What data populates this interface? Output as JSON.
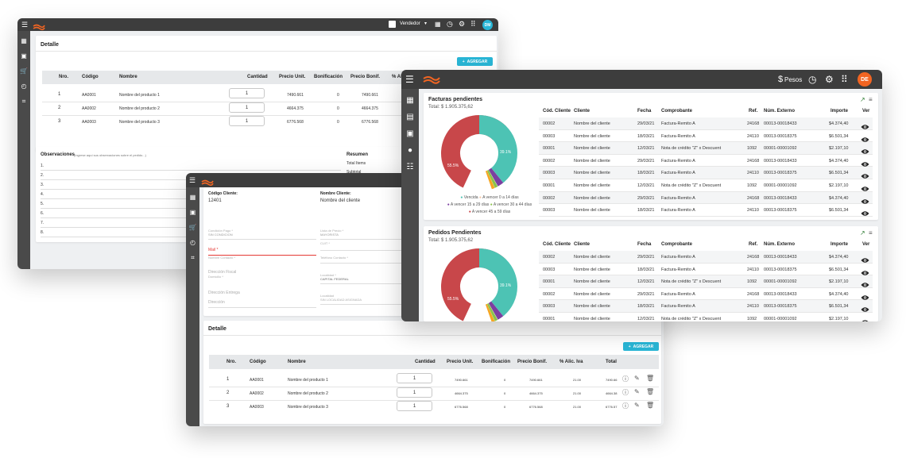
{
  "colors": {
    "accent": "#29b6d6",
    "topbar": "#3d3d3d",
    "teal": "#4dc3b4",
    "red": "#c8474a",
    "purple": "#7b3fa0",
    "green": "#8bc34a",
    "orange": "#f5a623",
    "avatar_back": "#29b6d6",
    "avatar_front": "#f26522"
  },
  "back": {
    "user_menu": "Vendedor",
    "avatar": "DM",
    "detalle": {
      "title": "Detalle",
      "add_label": "AGREGAR",
      "headers": [
        "Nro.",
        "Código",
        "Nombre",
        "Cantidad",
        "Precio Unit.",
        "Bonificación",
        "Precio Bonif.",
        "% Al"
      ],
      "rows": [
        {
          "nro": "1",
          "codigo": "AA0001",
          "nombre": "Nombre del producto 1",
          "cantidad": "1",
          "precio": "7490.661",
          "bonif": "0",
          "precio_bonif": "7490.661"
        },
        {
          "nro": "2",
          "codigo": "AA0002",
          "nombre": "Nombre del producto 2",
          "cantidad": "1",
          "precio": "4664.375",
          "bonif": "0",
          "precio_bonif": "4664.375"
        },
        {
          "nro": "3",
          "codigo": "AA0003",
          "nombre": "Nombre del producto 3",
          "cantidad": "1",
          "precio": "6776.568",
          "bonif": "0",
          "precio_bonif": "6776.568"
        }
      ]
    },
    "obs": {
      "title": "Observaciones",
      "hint": "(Ingrese aquí sus observaciones sobre el pedido...)",
      "lines": [
        "1.",
        "2.",
        "3.",
        "4.",
        "5.",
        "6.",
        "7.",
        "8."
      ],
      "resumen_title": "Resumen",
      "resumen_items": [
        "Total Items",
        "Subtotal"
      ]
    }
  },
  "middle": {
    "cliente": {
      "codigo_label": "Código Cliente:",
      "codigo_value": "12401",
      "nombre_label": "Nombre Cliente:",
      "nombre_value": "Nombre del cliente",
      "fields": [
        {
          "label": "Condición Pago *",
          "value": "SIN CONDICION"
        },
        {
          "label": "Lista de Precio *",
          "value": "MAYORISTA"
        },
        {
          "label": "",
          "value": "CUIT *"
        },
        {
          "label": "",
          "value": "Mail *"
        },
        {
          "label": "",
          "value": "Nombre Contacto *"
        },
        {
          "label": "",
          "value": "Teléfono Contacto *"
        },
        {
          "label": "",
          "value": "Dirección Fiscal"
        },
        {
          "label": "",
          "value": "Domicilio *"
        },
        {
          "label": "Localidad *",
          "value": "CAPITAL FEDERAL"
        },
        {
          "label": "",
          "value": "Dirección Entrega"
        },
        {
          "label": "",
          "value": "Dirección"
        },
        {
          "label": "Localidad",
          "value": "SIN LOCALIDAD ASIGNADA"
        }
      ]
    },
    "detalle": {
      "title": "Detalle",
      "add_label": "AGREGAR",
      "headers": [
        "Nro.",
        "Código",
        "Nombre",
        "Cantidad",
        "Precio Unit.",
        "Bonificación",
        "Precio Bonif.",
        "% Alic. Iva",
        "Total"
      ],
      "rows": [
        {
          "nro": "1",
          "codigo": "AA0001",
          "nombre": "Nombre del producto 1",
          "cantidad": "1",
          "precio": "7490.661",
          "bonif": "0",
          "precio_bonif": "7490.661",
          "iva": "21.00",
          "total": "7490.66"
        },
        {
          "nro": "2",
          "codigo": "AA0002",
          "nombre": "Nombre del producto 2",
          "cantidad": "1",
          "precio": "4664.375",
          "bonif": "0",
          "precio_bonif": "4664.375",
          "iva": "21.00",
          "total": "4664.38"
        },
        {
          "nro": "3",
          "codigo": "AA0003",
          "nombre": "Nombre del producto 3",
          "cantidad": "1",
          "precio": "6776.568",
          "bonif": "0",
          "precio_bonif": "6776.568",
          "iva": "21.00",
          "total": "6776.57"
        }
      ]
    }
  },
  "front": {
    "currency": "Pesos",
    "avatar": "DE",
    "facturas": {
      "title": "Facturas pendientes",
      "total": "Total: $ 1.905.375,62",
      "donut_labels": {
        "teal": "39.1%",
        "red": "55.5%"
      },
      "legend": [
        "Vencida",
        "A vencer 0 a 14 días",
        "A vencer 15 a 29 días",
        "A vencer 30 a 44 días",
        "A vencer 45 a 59 días"
      ],
      "headers": [
        "Cód. Cliente",
        "Cliente",
        "Fecha",
        "Comprobante",
        "Ref.",
        "Núm. Externo",
        "Importe",
        "Ver"
      ],
      "rows": [
        {
          "cod": "00002",
          "cliente": "Nombre del cliente",
          "fecha": "29/03/21",
          "comp": "Factura-Remito A",
          "ref": "24168",
          "num": "00013-00018433",
          "imp": "$4.374,40"
        },
        {
          "cod": "00003",
          "cliente": "Nombre del cliente",
          "fecha": "18/03/21",
          "comp": "Factura-Remito A",
          "ref": "24110",
          "num": "00013-00018375",
          "imp": "$6.501,34"
        },
        {
          "cod": "00001",
          "cliente": "Nombre del cliente",
          "fecha": "12/03/21",
          "comp": "Nota de crédito \"Z\" x Descuent",
          "ref": "1092",
          "num": "00001-00001092",
          "imp": "$2.197,10"
        },
        {
          "cod": "00002",
          "cliente": "Nombre del cliente",
          "fecha": "29/03/21",
          "comp": "Factura-Remito A",
          "ref": "24168",
          "num": "00013-00018433",
          "imp": "$4.374,40"
        },
        {
          "cod": "00003",
          "cliente": "Nombre del cliente",
          "fecha": "18/03/21",
          "comp": "Factura-Remito A",
          "ref": "24110",
          "num": "00013-00018375",
          "imp": "$6.501,34"
        },
        {
          "cod": "00001",
          "cliente": "Nombre del cliente",
          "fecha": "12/03/21",
          "comp": "Nota de crédito \"Z\" x Descuent",
          "ref": "1092",
          "num": "00001-00001092",
          "imp": "$2.197,10"
        },
        {
          "cod": "00002",
          "cliente": "Nombre del cliente",
          "fecha": "29/03/21",
          "comp": "Factura-Remito A",
          "ref": "24168",
          "num": "00013-00018433",
          "imp": "$4.374,40"
        },
        {
          "cod": "00003",
          "cliente": "Nombre del cliente",
          "fecha": "18/03/21",
          "comp": "Factura-Remito A",
          "ref": "24110",
          "num": "00013-00018375",
          "imp": "$6.501,34"
        }
      ]
    },
    "pedidos": {
      "title": "Pedidos Pendientes",
      "total": "Total: $ 1.905.375,62",
      "donut_labels": {
        "teal": "39.1%",
        "red": "55.5%"
      },
      "headers": [
        "Cód. Cliente",
        "Cliente",
        "Fecha",
        "Comprobante",
        "Ref.",
        "Núm. Externo",
        "Importe",
        "Ver"
      ],
      "rows": [
        {
          "cod": "00002",
          "cliente": "Nombre del cliente",
          "fecha": "29/03/21",
          "comp": "Factura-Remito A",
          "ref": "24168",
          "num": "00013-00018433",
          "imp": "$4.374,40"
        },
        {
          "cod": "00003",
          "cliente": "Nombre del cliente",
          "fecha": "18/03/21",
          "comp": "Factura-Remito A",
          "ref": "24110",
          "num": "00013-00018375",
          "imp": "$6.501,34"
        },
        {
          "cod": "00001",
          "cliente": "Nombre del cliente",
          "fecha": "12/03/21",
          "comp": "Nota de crédito \"Z\" x Descuent",
          "ref": "1092",
          "num": "00001-00001092",
          "imp": "$2.197,10"
        },
        {
          "cod": "00002",
          "cliente": "Nombre del cliente",
          "fecha": "29/03/21",
          "comp": "Factura-Remito A",
          "ref": "24168",
          "num": "00013-00018433",
          "imp": "$4.374,40"
        },
        {
          "cod": "00003",
          "cliente": "Nombre del cliente",
          "fecha": "18/03/21",
          "comp": "Factura-Remito A",
          "ref": "24110",
          "num": "00013-00018375",
          "imp": "$6.501,34"
        },
        {
          "cod": "00001",
          "cliente": "Nombre del cliente",
          "fecha": "12/03/21",
          "comp": "Nota de crédito \"Z\" x Descuent",
          "ref": "1092",
          "num": "00001-00001092",
          "imp": "$2.197,10"
        }
      ]
    }
  }
}
